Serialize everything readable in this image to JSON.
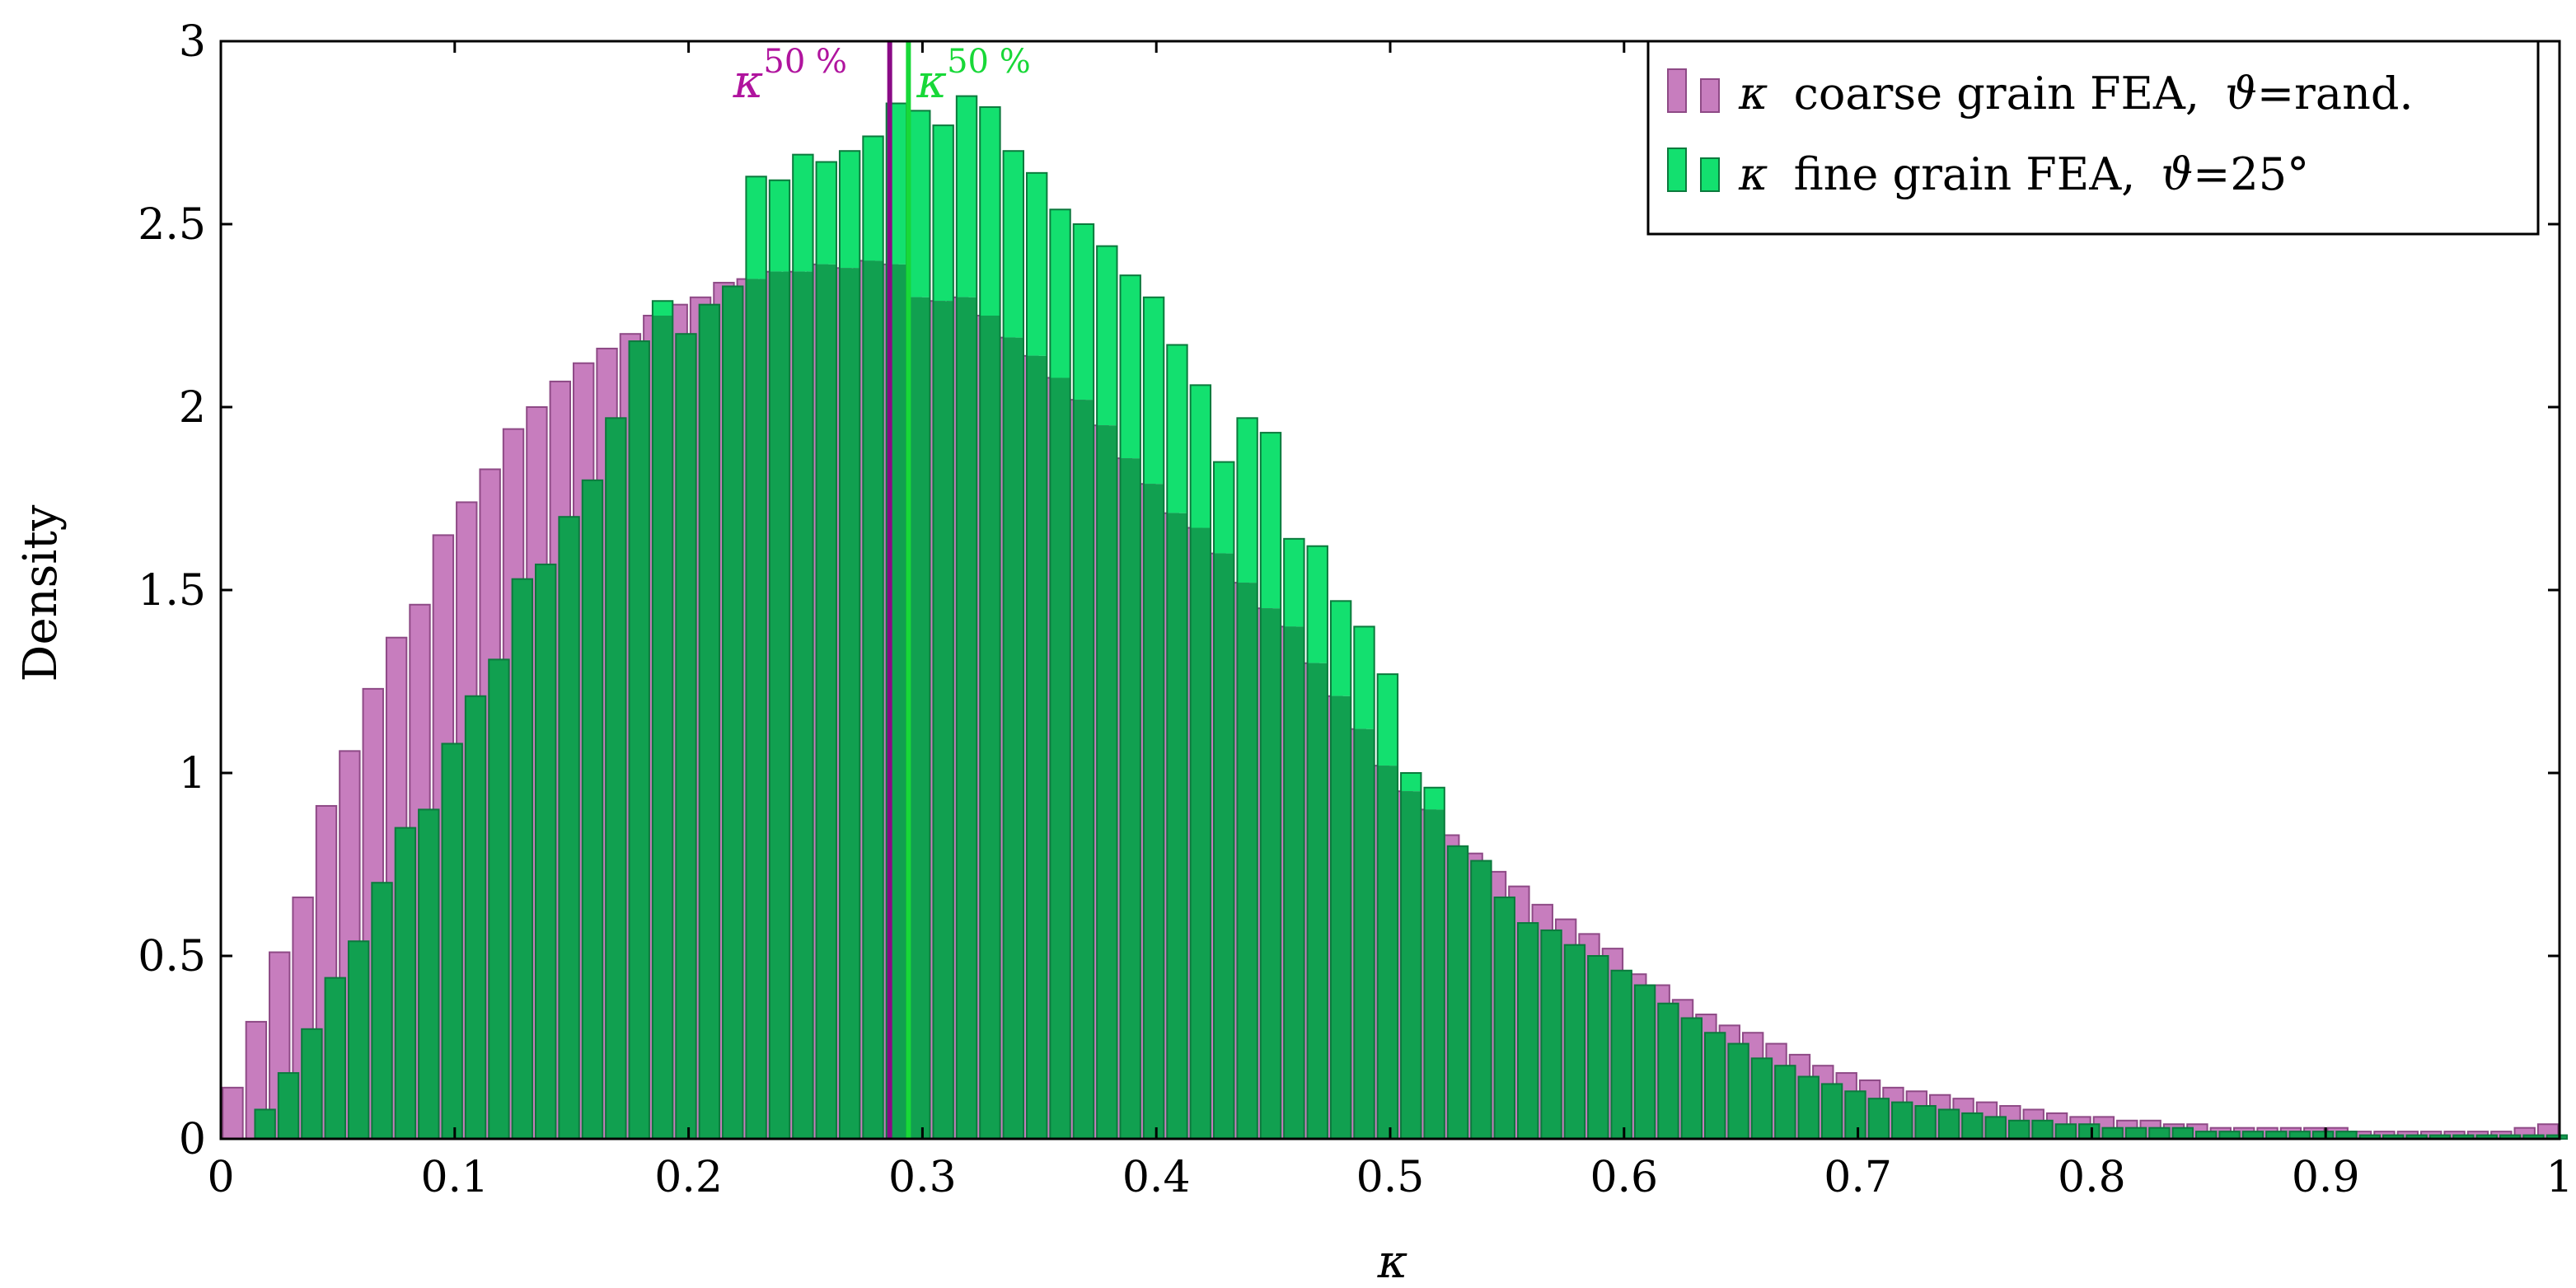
{
  "chart_data": {
    "type": "bar",
    "xlabel": "κ",
    "ylabel": "Density",
    "xlim": [
      0,
      1
    ],
    "ylim": [
      0,
      3
    ],
    "x_ticks": [
      {
        "value": 0,
        "label": "0"
      },
      {
        "value": 0.1,
        "label": "0.1"
      },
      {
        "value": 0.2,
        "label": "0.2"
      },
      {
        "value": 0.3,
        "label": "0.3"
      },
      {
        "value": 0.4,
        "label": "0.4"
      },
      {
        "value": 0.5,
        "label": "0.5"
      },
      {
        "value": 0.6,
        "label": "0.6"
      },
      {
        "value": 0.7,
        "label": "0.7"
      },
      {
        "value": 0.8,
        "label": "0.8"
      },
      {
        "value": 0.9,
        "label": "0.9"
      },
      {
        "value": 1,
        "label": "1"
      }
    ],
    "y_ticks": [
      {
        "value": 0,
        "label": "0"
      },
      {
        "value": 0.5,
        "label": "0.5"
      },
      {
        "value": 1,
        "label": "1"
      },
      {
        "value": 1.5,
        "label": "1.5"
      },
      {
        "value": 2,
        "label": "2"
      },
      {
        "value": 2.5,
        "label": "2.5"
      },
      {
        "value": 3,
        "label": "3"
      }
    ],
    "legend_position": "top-right",
    "bin_width": 0.01,
    "series": [
      {
        "name": "κ coarse grain FEA, ϑ=rand.",
        "legend_prefix": "κ",
        "legend_text": "coarse grain FEA,",
        "legend_theta": "ϑ",
        "legend_suffix": "=rand.",
        "color": "#c77dbe",
        "stroke": "#8e4a86",
        "bin_starts": [
          0.0,
          0.01,
          0.02,
          0.03,
          0.04,
          0.05,
          0.06,
          0.07,
          0.08,
          0.09,
          0.1,
          0.11,
          0.12,
          0.13,
          0.14,
          0.15,
          0.16,
          0.17,
          0.18,
          0.19,
          0.2,
          0.21,
          0.22,
          0.23,
          0.24,
          0.25,
          0.26,
          0.27,
          0.28,
          0.29,
          0.3,
          0.31,
          0.32,
          0.33,
          0.34,
          0.35,
          0.36,
          0.37,
          0.38,
          0.39,
          0.4,
          0.41,
          0.42,
          0.43,
          0.44,
          0.45,
          0.46,
          0.47,
          0.48,
          0.49,
          0.5,
          0.51,
          0.52,
          0.53,
          0.54,
          0.55,
          0.56,
          0.57,
          0.58,
          0.59,
          0.6,
          0.61,
          0.62,
          0.63,
          0.64,
          0.65,
          0.66,
          0.67,
          0.68,
          0.69,
          0.7,
          0.71,
          0.72,
          0.73,
          0.74,
          0.75,
          0.76,
          0.77,
          0.78,
          0.79,
          0.8,
          0.81,
          0.82,
          0.83,
          0.84,
          0.85,
          0.86,
          0.87,
          0.88,
          0.89,
          0.9,
          0.91,
          0.92,
          0.93,
          0.94,
          0.95,
          0.96,
          0.97,
          0.98,
          0.99
        ],
        "values": [
          0.14,
          0.32,
          0.51,
          0.66,
          0.91,
          1.06,
          1.23,
          1.37,
          1.46,
          1.65,
          1.74,
          1.83,
          1.94,
          2.0,
          2.07,
          2.12,
          2.16,
          2.2,
          2.25,
          2.28,
          2.3,
          2.34,
          2.35,
          2.37,
          2.37,
          2.39,
          2.38,
          2.4,
          2.39,
          2.3,
          2.29,
          2.3,
          2.25,
          2.19,
          2.14,
          2.08,
          2.02,
          1.95,
          1.86,
          1.79,
          1.71,
          1.67,
          1.6,
          1.52,
          1.45,
          1.4,
          1.3,
          1.21,
          1.12,
          1.02,
          0.95,
          0.9,
          0.83,
          0.78,
          0.73,
          0.69,
          0.64,
          0.6,
          0.56,
          0.52,
          0.45,
          0.42,
          0.38,
          0.34,
          0.31,
          0.29,
          0.26,
          0.23,
          0.2,
          0.18,
          0.16,
          0.14,
          0.13,
          0.12,
          0.11,
          0.1,
          0.09,
          0.08,
          0.07,
          0.06,
          0.06,
          0.05,
          0.05,
          0.04,
          0.04,
          0.03,
          0.03,
          0.03,
          0.03,
          0.03,
          0.03,
          0.02,
          0.02,
          0.02,
          0.02,
          0.02,
          0.02,
          0.02,
          0.03,
          0.04
        ]
      },
      {
        "name": "κ fine grain FEA, ϑ=25°",
        "legend_prefix": "κ",
        "legend_text": "fine grain FEA,",
        "legend_theta": "ϑ",
        "legend_suffix": "=25°",
        "color": "#13e06f",
        "stroke": "#0b7a3d",
        "overlap_fill": "#11a050",
        "bin_starts": [
          0.0,
          0.01,
          0.02,
          0.03,
          0.04,
          0.05,
          0.06,
          0.07,
          0.08,
          0.09,
          0.1,
          0.11,
          0.12,
          0.13,
          0.14,
          0.15,
          0.16,
          0.17,
          0.18,
          0.19,
          0.2,
          0.21,
          0.22,
          0.23,
          0.24,
          0.25,
          0.26,
          0.27,
          0.28,
          0.29,
          0.3,
          0.31,
          0.32,
          0.33,
          0.34,
          0.35,
          0.36,
          0.37,
          0.38,
          0.39,
          0.4,
          0.41,
          0.42,
          0.43,
          0.44,
          0.45,
          0.46,
          0.47,
          0.48,
          0.49,
          0.5,
          0.51,
          0.52,
          0.53,
          0.54,
          0.55,
          0.56,
          0.57,
          0.58,
          0.59,
          0.6,
          0.61,
          0.62,
          0.63,
          0.64,
          0.65,
          0.66,
          0.67,
          0.68,
          0.69,
          0.7,
          0.71,
          0.72,
          0.73,
          0.74,
          0.75,
          0.76,
          0.77,
          0.78,
          0.79,
          0.8,
          0.81,
          0.82,
          0.83,
          0.84,
          0.85,
          0.86,
          0.87,
          0.88,
          0.89,
          0.9,
          0.91,
          0.92,
          0.93,
          0.94,
          0.95,
          0.96,
          0.97,
          0.98,
          0.99
        ],
        "values": [
          0.0,
          0.08,
          0.18,
          0.3,
          0.44,
          0.54,
          0.7,
          0.85,
          0.9,
          1.08,
          1.21,
          1.31,
          1.53,
          1.57,
          1.7,
          1.8,
          1.97,
          2.18,
          2.29,
          2.2,
          2.28,
          2.33,
          2.63,
          2.62,
          2.69,
          2.67,
          2.7,
          2.74,
          2.83,
          2.81,
          2.77,
          2.85,
          2.82,
          2.7,
          2.64,
          2.54,
          2.5,
          2.44,
          2.36,
          2.3,
          2.17,
          2.06,
          1.85,
          1.97,
          1.93,
          1.64,
          1.62,
          1.47,
          1.4,
          1.27,
          1.0,
          0.96,
          0.8,
          0.76,
          0.66,
          0.59,
          0.57,
          0.53,
          0.5,
          0.46,
          0.42,
          0.37,
          0.33,
          0.29,
          0.26,
          0.22,
          0.2,
          0.17,
          0.15,
          0.13,
          0.11,
          0.1,
          0.09,
          0.08,
          0.07,
          0.06,
          0.05,
          0.05,
          0.04,
          0.04,
          0.03,
          0.03,
          0.03,
          0.03,
          0.02,
          0.02,
          0.02,
          0.02,
          0.02,
          0.02,
          0.02,
          0.01,
          0.01,
          0.01,
          0.01,
          0.01,
          0.01,
          0.01,
          0.01,
          0.01
        ]
      }
    ],
    "markers": [
      {
        "x": 0.286,
        "label_base": "κ",
        "label_sup": "50 %",
        "color": "#8a0a86",
        "label_color": "#b0149e"
      },
      {
        "x": 0.294,
        "label_base": "κ",
        "label_sup": "50 %",
        "color": "#18d838",
        "label_color": "#18d838"
      }
    ]
  }
}
